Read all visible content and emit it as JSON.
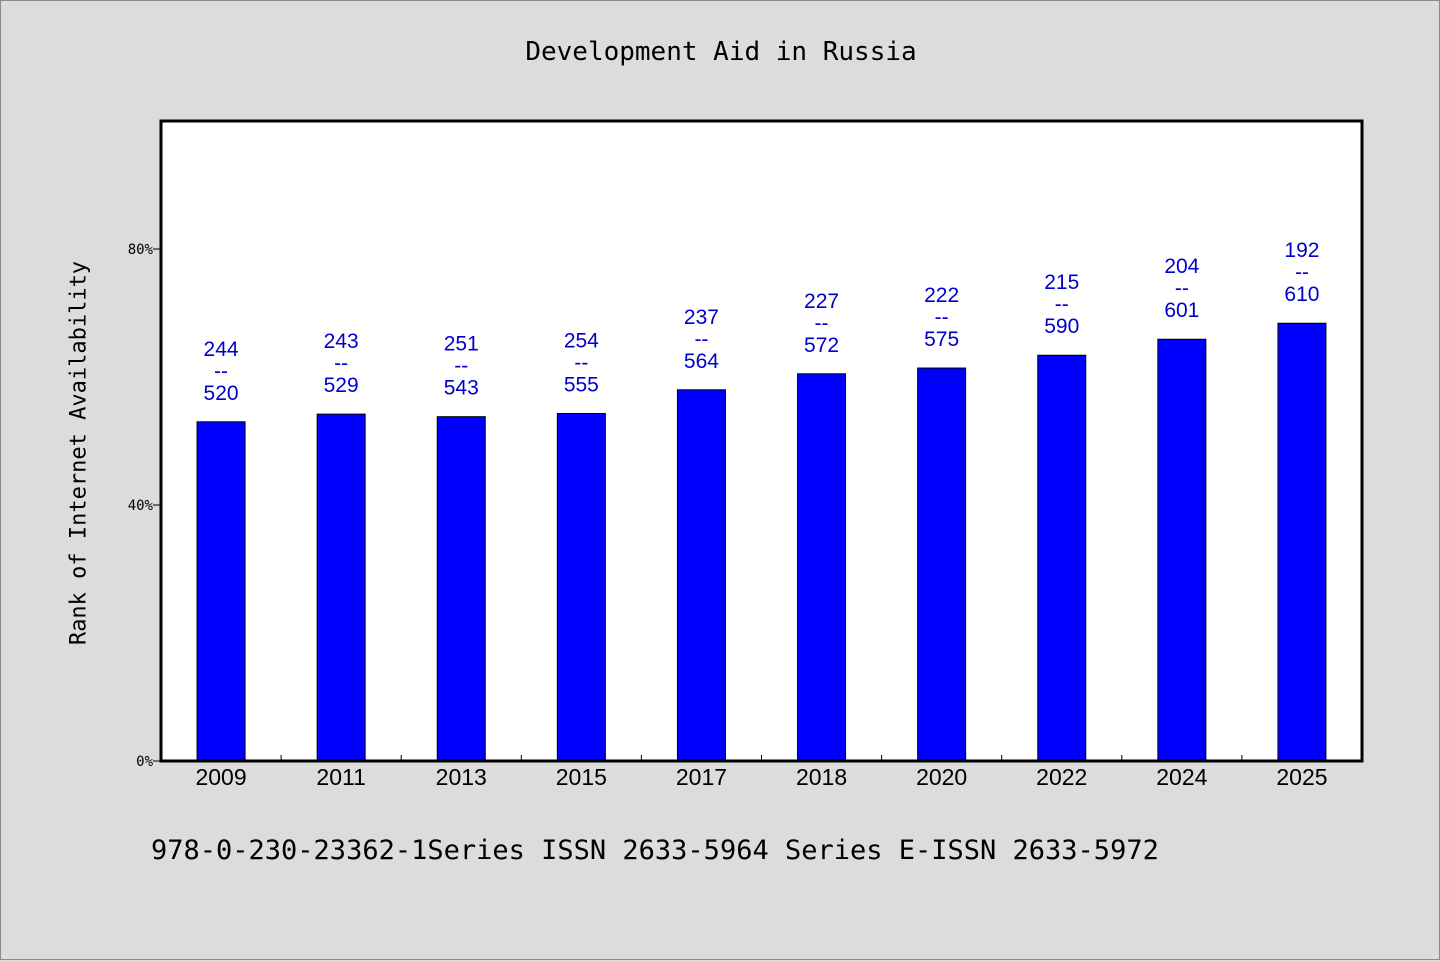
{
  "colors": {
    "bar": "#0000ff",
    "data_label": "#0000cc",
    "background": "#dcdcdc",
    "plot_background": "#ffffff"
  },
  "footnote": "978-0-230-23362-1Series ISSN 2633-5964 Series E-ISSN 2633-5972",
  "chart_data": {
    "type": "bar",
    "title": "Development Aid in Russia",
    "xlabel": "",
    "ylabel": "Rank of Internet Availability",
    "ylim": [
      0,
      100
    ],
    "yticks": [
      0,
      40,
      80
    ],
    "ytick_labels": [
      "0%",
      "40%",
      "80%"
    ],
    "grid": false,
    "categories": [
      "2009",
      "2011",
      "2013",
      "2015",
      "2017",
      "2018",
      "2020",
      "2022",
      "2024",
      "2025"
    ],
    "values": [
      53,
      54.2,
      53.8,
      54.3,
      58,
      60.5,
      61.4,
      63.4,
      65.9,
      68.4
    ],
    "bar_labels": [
      [
        "244",
        "--",
        "520"
      ],
      [
        "243",
        "--",
        "529"
      ],
      [
        "251",
        "--",
        "543"
      ],
      [
        "254",
        "--",
        "555"
      ],
      [
        "237",
        "--",
        "564"
      ],
      [
        "227",
        "--",
        "572"
      ],
      [
        "222",
        "--",
        "575"
      ],
      [
        "215",
        "--",
        "590"
      ],
      [
        "204",
        "--",
        "601"
      ],
      [
        "192",
        "--",
        "610"
      ]
    ]
  }
}
